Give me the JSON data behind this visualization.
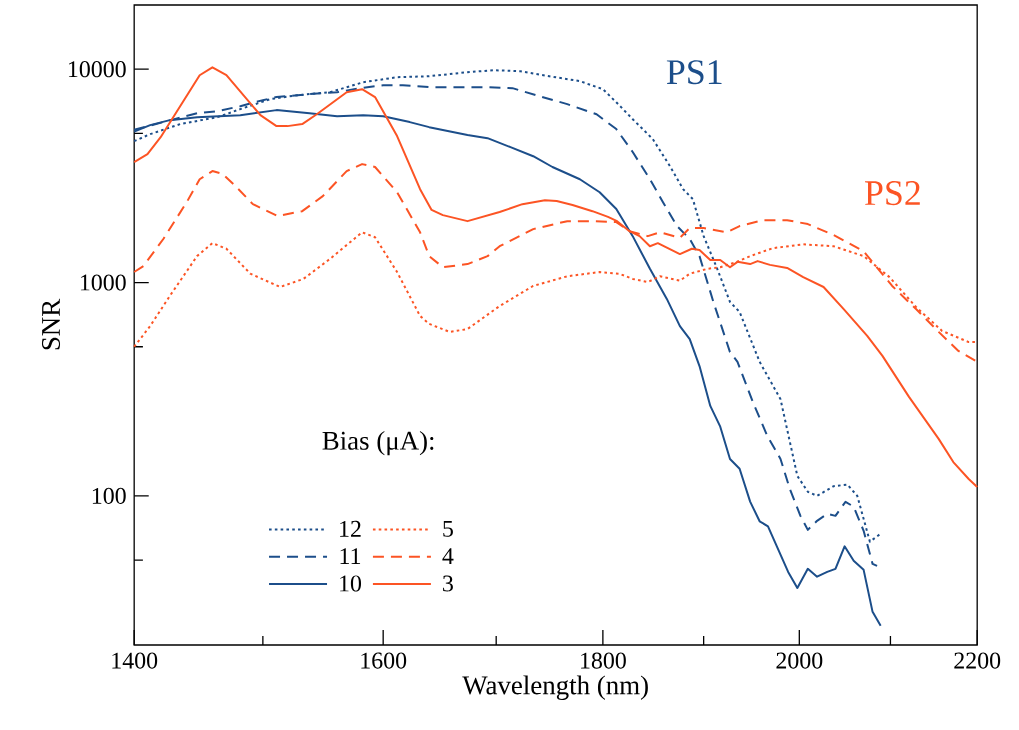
{
  "chart_data": {
    "type": "line",
    "xlabel": "Wavelength (nm)",
    "ylabel": "SNR",
    "legend_title": "Bias (μA):",
    "legend": "bottom left",
    "log": "xy",
    "xlim": [
      1400,
      2200
    ],
    "ylim": [
      20,
      20000
    ],
    "xticks": [
      1400,
      {
        "value": 1500,
        "label": null
      },
      1600,
      {
        "value": 1700,
        "label": null
      },
      1800,
      {
        "value": 1900,
        "label": null
      },
      2000,
      {
        "value": 2100,
        "label": null
      },
      2200
    ],
    "yticks": [
      {
        "value": 50,
        "label": null
      },
      100,
      {
        "value": 500,
        "label": null
      },
      1000,
      {
        "value": 5000,
        "label": null
      },
      10000
    ],
    "annotations": [
      "PS1",
      "PS2"
    ],
    "series": [
      {
        "name": "12",
        "color": "#1c4e8a",
        "line_style": "dotted",
        "x": [
          1400,
          1412,
          1435,
          1464,
          1482,
          1506,
          1528,
          1555,
          1583,
          1612,
          1640,
          1674,
          1697,
          1722,
          1749,
          1778,
          1800,
          1813,
          1829,
          1849,
          1866,
          1879,
          1889,
          1900,
          1914,
          1927,
          1937,
          1958,
          1980,
          1998,
          2009,
          2019,
          2037,
          2052,
          2063,
          2077,
          2088
        ],
        "values": [
          4600,
          4960,
          5530,
          5960,
          6500,
          7240,
          7550,
          7800,
          8690,
          9170,
          9270,
          9680,
          9890,
          9790,
          9270,
          8790,
          8060,
          7000,
          5830,
          4700,
          3510,
          2740,
          2460,
          1650,
          1160,
          811,
          728,
          425,
          284,
          124,
          104.5,
          100,
          111,
          113,
          100,
          61,
          66
        ]
      },
      {
        "name": "11",
        "color": "#1c4e8a",
        "line_style": "dashed",
        "x": [
          1400,
          1422,
          1448,
          1464,
          1482,
          1500,
          1511,
          1538,
          1561,
          1580,
          1600,
          1617,
          1640,
          1688,
          1715,
          1740,
          1766,
          1794,
          1813,
          1829,
          1846,
          1859,
          1873,
          1886,
          1896,
          1910,
          1927,
          1935,
          1951,
          1966,
          1980,
          1990,
          2001,
          2009,
          2019,
          2030,
          2039,
          2050,
          2059,
          2070,
          2080,
          2085
        ],
        "values": [
          5200,
          5650,
          6220,
          6360,
          6710,
          7160,
          7400,
          7640,
          7800,
          8150,
          8410,
          8410,
          8240,
          8240,
          8150,
          7470,
          6860,
          6150,
          5240,
          4090,
          3050,
          2380,
          1840,
          1600,
          1330,
          811,
          472,
          425,
          275,
          191,
          149,
          108,
          80.6,
          69.3,
          76.4,
          82.4,
          80.6,
          93.8,
          89,
          68.6,
          48,
          47
        ]
      },
      {
        "name": "10",
        "color": "#1c4e8a",
        "line_style": "solid",
        "x": [
          1400,
          1412,
          1427,
          1448,
          1482,
          1511,
          1538,
          1561,
          1583,
          1600,
          1623,
          1640,
          1674,
          1692,
          1713,
          1734,
          1752,
          1778,
          1797,
          1813,
          1829,
          1846,
          1863,
          1876,
          1886,
          1896,
          1907,
          1917,
          1927,
          1937,
          1948,
          1958,
          1967,
          1988,
          1998,
          2009,
          2019,
          2030,
          2039,
          2049,
          2059,
          2070,
          2080,
          2089
        ],
        "values": [
          5100,
          5470,
          5770,
          5960,
          6090,
          6430,
          6220,
          6020,
          6090,
          6020,
          5650,
          5350,
          4910,
          4750,
          4310,
          3910,
          3480,
          3050,
          2650,
          2210,
          1650,
          1160,
          838,
          625,
          543,
          406,
          264,
          211,
          149,
          134,
          94,
          76,
          72,
          44,
          37,
          45.5,
          41.8,
          44,
          45.5,
          58,
          49.6,
          45,
          28.6,
          24.6
        ]
      },
      {
        "name": "5",
        "color": "#fc5424",
        "line_style": "dotted",
        "x": [
          1400,
          1412,
          1427,
          1448,
          1460,
          1471,
          1490,
          1514,
          1533,
          1555,
          1582,
          1593,
          1612,
          1632,
          1640,
          1658,
          1674,
          1703,
          1734,
          1766,
          1797,
          1816,
          1829,
          1844,
          1856,
          1876,
          1886,
          1904,
          1917,
          1934,
          1948,
          1972,
          2004,
          2037,
          2070,
          2099,
          2129,
          2159,
          2190,
          2200
        ],
        "values": [
          500,
          625,
          865,
          1330,
          1530,
          1440,
          1100,
          953,
          1040,
          1290,
          1720,
          1630,
          1120,
          697,
          640,
          587,
          605,
          776,
          964,
          1070,
          1120,
          1100,
          1040,
          1005,
          1070,
          1020,
          1100,
          1160,
          1180,
          1250,
          1330,
          1450,
          1510,
          1480,
          1330,
          1060,
          768,
          593,
          526,
          526
        ]
      },
      {
        "name": "4",
        "color": "#fc5424",
        "line_style": "dashed",
        "x": [
          1400,
          1407,
          1422,
          1440,
          1450,
          1460,
          1468,
          1479,
          1492,
          1512,
          1532,
          1549,
          1569,
          1582,
          1593,
          1612,
          1632,
          1640,
          1652,
          1674,
          1692,
          1703,
          1734,
          1766,
          1790,
          1813,
          1826,
          1844,
          1856,
          1876,
          1886,
          1900,
          1924,
          1937,
          1961,
          1987,
          2009,
          2037,
          2070,
          2102,
          2129,
          2155,
          2178,
          2200
        ],
        "values": [
          1120,
          1195,
          1600,
          2380,
          3050,
          3330,
          3230,
          2800,
          2330,
          2050,
          2160,
          2540,
          3330,
          3590,
          3480,
          2650,
          1720,
          1330,
          1180,
          1220,
          1330,
          1480,
          1780,
          1940,
          1940,
          1920,
          1740,
          1650,
          1720,
          1620,
          1800,
          1800,
          1720,
          1840,
          1960,
          1960,
          1880,
          1670,
          1400,
          964,
          751,
          587,
          478,
          425
        ]
      },
      {
        "name": "3",
        "color": "#fc5424",
        "line_style": "solid",
        "x": [
          1400,
          1410,
          1420,
          1450,
          1460,
          1471,
          1498,
          1511,
          1520,
          1532,
          1544,
          1569,
          1582,
          1593,
          1612,
          1632,
          1642,
          1652,
          1674,
          1703,
          1724,
          1745,
          1756,
          1771,
          1790,
          1805,
          1814,
          1826,
          1836,
          1846,
          1854,
          1876,
          1888,
          1896,
          1907,
          1917,
          1927,
          1935,
          1948,
          1956,
          1969,
          1987,
          2004,
          2026,
          2048,
          2074,
          2091,
          2121,
          2155,
          2172,
          2190,
          2200
        ],
        "values": [
          3670,
          4000,
          4800,
          9370,
          10200,
          9370,
          6090,
          5410,
          5410,
          5530,
          6150,
          7800,
          8060,
          7400,
          4860,
          2740,
          2190,
          2070,
          1940,
          2140,
          2330,
          2430,
          2410,
          2310,
          2160,
          2030,
          1940,
          1740,
          1650,
          1480,
          1530,
          1360,
          1440,
          1420,
          1275,
          1275,
          1180,
          1250,
          1220,
          1260,
          1210,
          1170,
          1060,
          953,
          751,
          562,
          453,
          291,
          185,
          144,
          120,
          110
        ]
      }
    ]
  }
}
